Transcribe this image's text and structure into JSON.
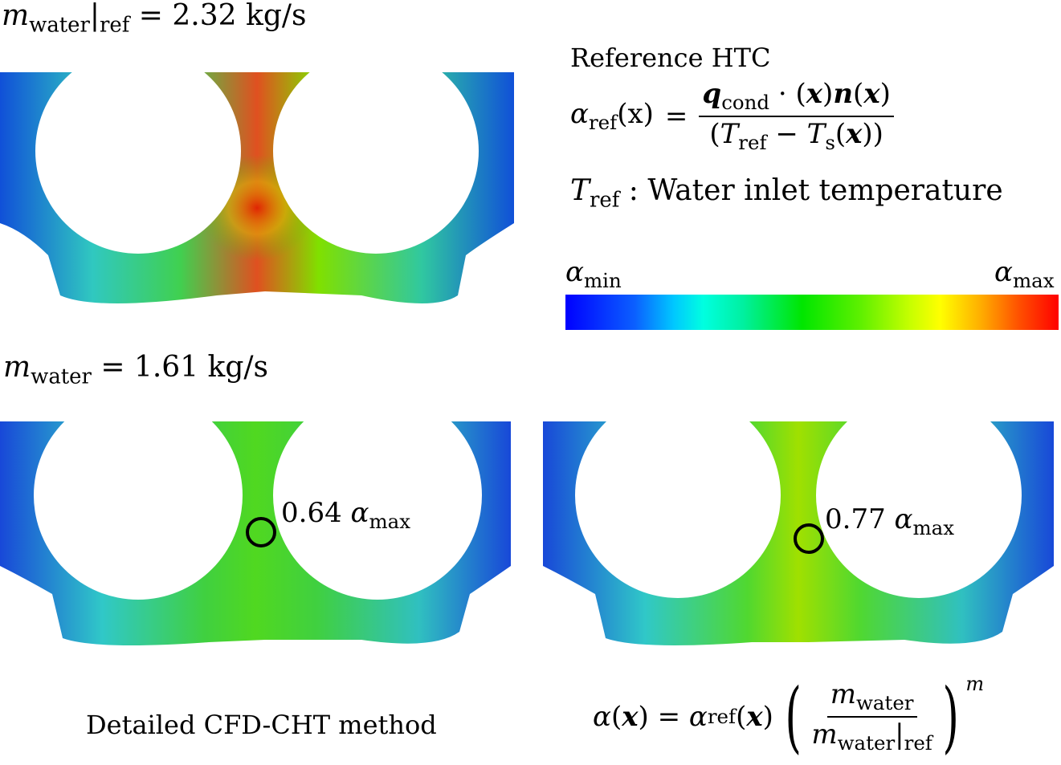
{
  "top_label": {
    "symbol": "m",
    "sub": "water",
    "sub2": "ref",
    "rhs": "= 2.32 kg/s"
  },
  "mid_label": {
    "symbol": "m",
    "sub": "water",
    "rhs": "= 1.61 kg/s"
  },
  "reference": {
    "heading": "Reference HTC",
    "lhs_symbol": "α",
    "lhs_sub": "ref",
    "lhs_arg": "(x)",
    "eq": "=",
    "num_q": "q",
    "num_q_sub": "cond",
    "num_rest1": "· (",
    "num_x1": "x",
    "num_rest2": ")",
    "num_n": "n",
    "num_rest3": "(",
    "num_x2": "x",
    "num_rest4": ")",
    "den_open": "(",
    "den_T": "T",
    "den_T_sub": "ref",
    "den_minus": " − ",
    "den_Ts": "T",
    "den_Ts_sub": "s",
    "den_rest1": "(",
    "den_x": "x",
    "den_rest2": "))",
    "tref_symbol": "T",
    "tref_sub": "ref",
    "tref_text": " : Water inlet temperature"
  },
  "colorbar": {
    "min_symbol": "α",
    "min_sub": "min",
    "max_symbol": "α",
    "max_sub": "max"
  },
  "annotations": [
    {
      "value": "0.64",
      "symbol": "α",
      "sub": "max"
    },
    {
      "value": "0.77",
      "symbol": "α",
      "sub": "max"
    }
  ],
  "captions": {
    "left": "Detailed CFD-CHT method"
  },
  "scaling_formula": {
    "lhs": "α",
    "lhs_arg_open": "(",
    "lhs_x": "x",
    "lhs_arg_close": ")",
    "eq": " = ",
    "ref_symbol": "α",
    "ref_sub": "ref",
    "ref_arg_open": "(",
    "ref_x": "x",
    "ref_arg_close": ")",
    "num_symbol": "m",
    "num_sub": "water",
    "den_symbol": "m",
    "den_sub": "water",
    "den_sub2": "ref",
    "exponent": "m"
  },
  "colors": {
    "blue": "#1040e0",
    "cyan": "#30d8d0",
    "green": "#40d000",
    "yellow": "#d8e000",
    "red": "#e02000",
    "ring": "#000000"
  }
}
